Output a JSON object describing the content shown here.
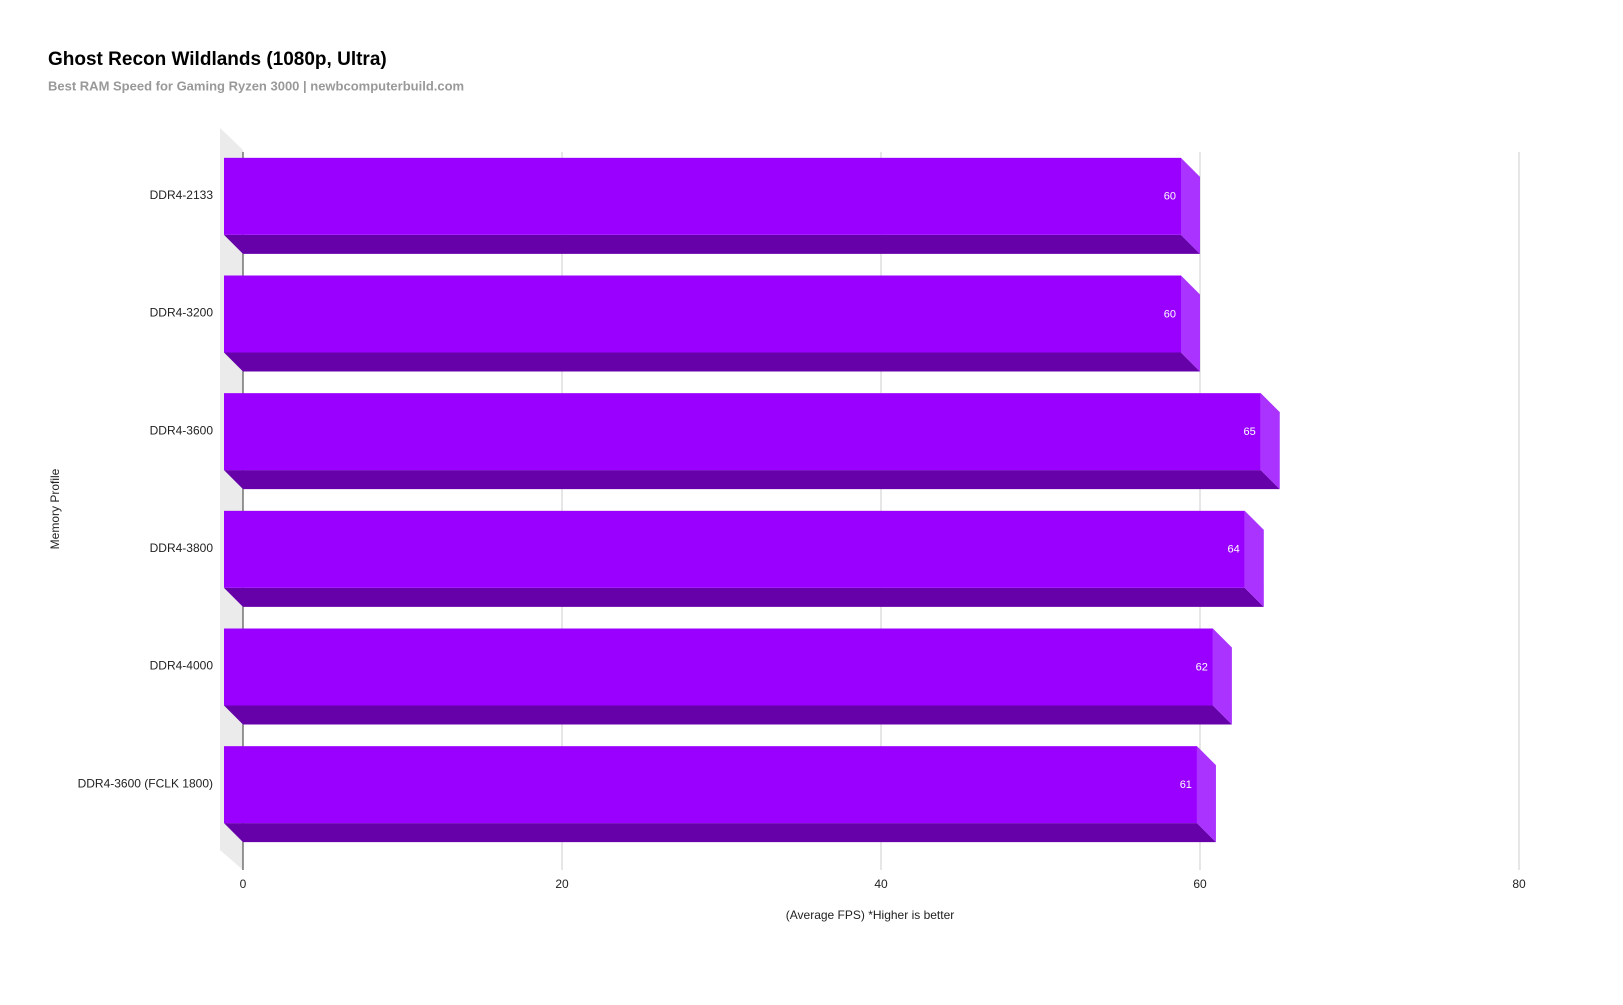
{
  "chart_data": {
    "type": "bar3d",
    "orientation": "horizontal",
    "title": "Ghost Recon Wildlands (1080p, Ultra)",
    "subtitle": "Best RAM Speed for Gaming Ryzen 3000 | newbcomputerbuild.com",
    "x_label": "(Average FPS) *Higher is better",
    "y_label": "Memory Profile",
    "categories": [
      "DDR4-2133",
      "DDR4-3200",
      "DDR4-3600",
      "DDR4-3800",
      "DDR4-4000",
      "DDR4-3600 (FCLK 1800)"
    ],
    "values": [
      60,
      60,
      65,
      64,
      62,
      61
    ],
    "color": "#9900ff",
    "xlim": [
      0,
      80
    ],
    "xticks": [
      0,
      20,
      40,
      60,
      80
    ],
    "grid": true
  }
}
